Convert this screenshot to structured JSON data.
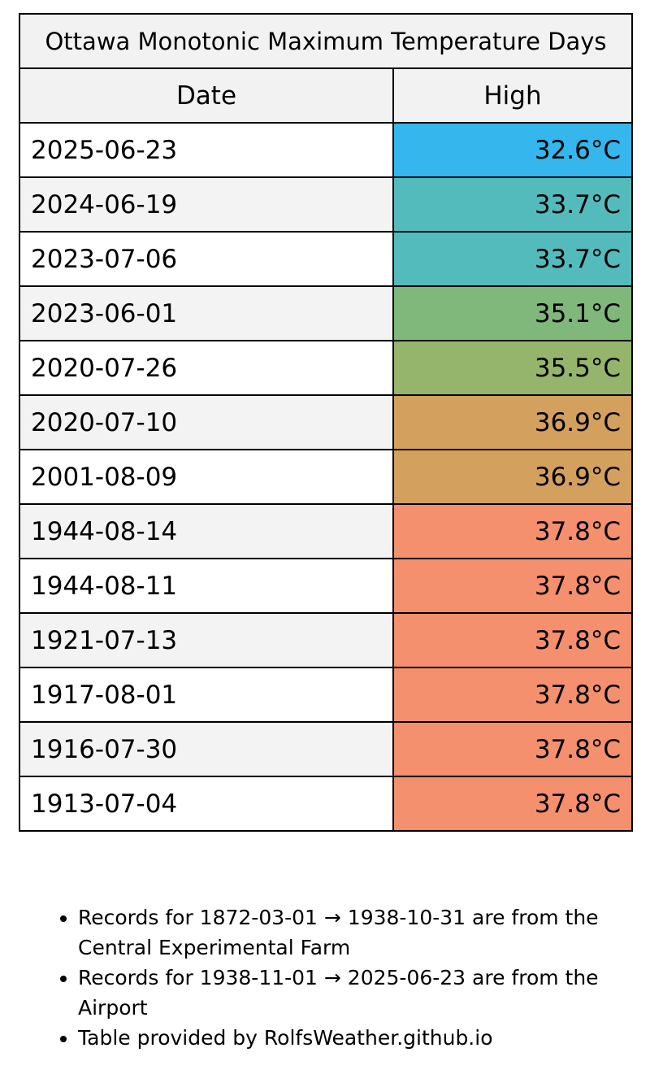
{
  "table": {
    "title": "Ottawa Monotonic Maximum Temperature Days",
    "headers": {
      "date": "Date",
      "high": "High"
    },
    "rows": [
      {
        "date": "2025-06-23",
        "high": "32.6°C",
        "color": "#35b6ec"
      },
      {
        "date": "2024-06-19",
        "high": "33.7°C",
        "color": "#54bbbd"
      },
      {
        "date": "2023-07-06",
        "high": "33.7°C",
        "color": "#54bbbd"
      },
      {
        "date": "2023-06-01",
        "high": "35.1°C",
        "color": "#7fb87a"
      },
      {
        "date": "2020-07-26",
        "high": "35.5°C",
        "color": "#95b56c"
      },
      {
        "date": "2020-07-10",
        "high": "36.9°C",
        "color": "#d4a05e"
      },
      {
        "date": "2001-08-09",
        "high": "36.9°C",
        "color": "#d4a05e"
      },
      {
        "date": "1944-08-14",
        "high": "37.8°C",
        "color": "#f4906d"
      },
      {
        "date": "1944-08-11",
        "high": "37.8°C",
        "color": "#f4906d"
      },
      {
        "date": "1921-07-13",
        "high": "37.8°C",
        "color": "#f4906d"
      },
      {
        "date": "1917-08-01",
        "high": "37.8°C",
        "color": "#f4906d"
      },
      {
        "date": "1916-07-30",
        "high": "37.8°C",
        "color": "#f4906d"
      },
      {
        "date": "1913-07-04",
        "high": "37.8°C",
        "color": "#f4906d"
      }
    ]
  },
  "notes": [
    "Records for 1872-03-01 → 1938-10-31 are from the Central Experimental Farm",
    "Records for 1938-11-01 → 2025-06-23 are from the Airport",
    "Table provided by RolfsWeather.github.io"
  ]
}
